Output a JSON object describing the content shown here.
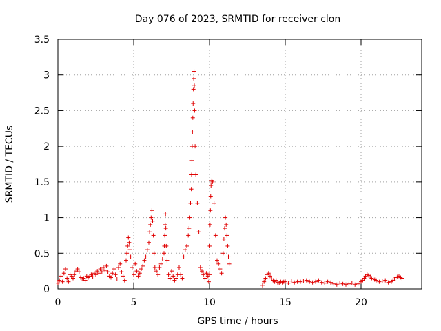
{
  "chart_data": {
    "type": "scatter",
    "title": "Day 076 of 2023, SRMTID for receiver clon",
    "xlabel": "GPS time / hours",
    "ylabel": "SRMTID / TECUs",
    "xlim": [
      0,
      24
    ],
    "ylim": [
      0,
      3.5
    ],
    "x_ticks": [
      0,
      5,
      10,
      15,
      20
    ],
    "x_tick_labels": [
      "0",
      "5",
      "10",
      "15",
      "20"
    ],
    "y_ticks": [
      0,
      0.5,
      1,
      1.5,
      2,
      2.5,
      3,
      3.5
    ],
    "y_tick_labels": [
      "0",
      "0.5",
      "1",
      "1.5",
      "2",
      "2.5",
      "3",
      "3.5"
    ],
    "grid": true,
    "marker": "+",
    "color": "#e00000",
    "series": [
      {
        "name": "clon",
        "x": [
          0.0,
          0.1,
          0.2,
          0.3,
          0.4,
          0.5,
          0.6,
          0.7,
          0.8,
          0.9,
          1.0,
          1.1,
          1.2,
          1.3,
          1.4,
          1.5,
          1.6,
          1.7,
          1.8,
          1.9,
          2.0,
          2.1,
          2.2,
          2.3,
          2.4,
          2.5,
          2.6,
          2.7,
          2.8,
          2.9,
          3.0,
          3.1,
          3.2,
          3.3,
          3.4,
          3.5,
          3.6,
          3.7,
          3.8,
          3.9,
          4.0,
          4.1,
          4.2,
          4.3,
          4.4,
          4.5,
          4.55,
          4.6,
          4.65,
          4.7,
          4.75,
          4.8,
          4.9,
          5.0,
          5.1,
          5.2,
          5.3,
          5.4,
          5.5,
          5.6,
          5.7,
          5.8,
          5.9,
          6.0,
          6.05,
          6.1,
          6.15,
          6.2,
          6.25,
          6.3,
          6.35,
          6.4,
          6.5,
          6.6,
          6.7,
          6.8,
          6.9,
          7.0,
          7.02,
          7.05,
          7.08,
          7.1,
          7.12,
          7.15,
          7.2,
          7.3,
          7.4,
          7.5,
          7.6,
          7.7,
          7.8,
          7.9,
          8.0,
          8.1,
          8.2,
          8.3,
          8.4,
          8.5,
          8.6,
          8.65,
          8.7,
          8.75,
          8.8,
          8.82,
          8.84,
          8.86,
          8.88,
          8.9,
          8.92,
          8.94,
          8.96,
          8.98,
          9.0,
          9.02,
          9.05,
          9.1,
          9.2,
          9.3,
          9.4,
          9.5,
          9.6,
          9.7,
          9.8,
          9.9,
          9.95,
          10.0,
          10.02,
          10.04,
          10.06,
          10.08,
          10.1,
          10.15,
          10.2,
          10.3,
          10.4,
          10.5,
          10.6,
          10.7,
          10.8,
          10.9,
          10.95,
          11.0,
          11.05,
          11.1,
          11.15,
          11.2,
          11.25,
          11.3,
          13.5,
          13.6,
          13.7,
          13.8,
          13.9,
          14.0,
          14.1,
          14.2,
          14.3,
          14.4,
          14.5,
          14.6,
          14.7,
          14.8,
          14.9,
          15.0,
          15.2,
          15.4,
          15.6,
          15.8,
          16.0,
          16.2,
          16.4,
          16.6,
          16.8,
          17.0,
          17.2,
          17.4,
          17.6,
          17.8,
          18.0,
          18.2,
          18.4,
          18.6,
          18.8,
          19.0,
          19.2,
          19.4,
          19.6,
          19.8,
          20.0,
          20.1,
          20.2,
          20.3,
          20.4,
          20.5,
          20.6,
          20.7,
          20.8,
          20.9,
          21.0,
          21.2,
          21.4,
          21.6,
          21.8,
          22.0,
          22.1,
          22.2,
          22.3,
          22.4,
          22.5,
          22.6,
          22.7
        ],
        "y": [
          0.08,
          0.12,
          0.18,
          0.1,
          0.22,
          0.28,
          0.15,
          0.1,
          0.2,
          0.18,
          0.15,
          0.2,
          0.25,
          0.28,
          0.24,
          0.16,
          0.14,
          0.15,
          0.12,
          0.18,
          0.16,
          0.18,
          0.2,
          0.17,
          0.22,
          0.2,
          0.25,
          0.22,
          0.28,
          0.24,
          0.3,
          0.26,
          0.32,
          0.24,
          0.18,
          0.16,
          0.22,
          0.28,
          0.2,
          0.14,
          0.3,
          0.35,
          0.24,
          0.18,
          0.12,
          0.4,
          0.5,
          0.6,
          0.72,
          0.65,
          0.55,
          0.45,
          0.3,
          0.2,
          0.35,
          0.25,
          0.18,
          0.22,
          0.28,
          0.32,
          0.4,
          0.45,
          0.55,
          0.65,
          0.8,
          0.9,
          1.0,
          1.1,
          0.95,
          0.75,
          0.5,
          0.3,
          0.25,
          0.2,
          0.3,
          0.35,
          0.42,
          0.5,
          0.6,
          0.75,
          0.9,
          1.05,
          0.85,
          0.6,
          0.4,
          0.2,
          0.15,
          0.25,
          0.18,
          0.12,
          0.15,
          0.2,
          0.3,
          0.2,
          0.15,
          0.45,
          0.55,
          0.6,
          0.75,
          0.85,
          1.0,
          1.2,
          1.4,
          1.6,
          1.8,
          2.0,
          2.2,
          2.4,
          2.6,
          2.8,
          2.95,
          3.05,
          2.85,
          2.5,
          2.0,
          1.6,
          1.2,
          0.8,
          0.3,
          0.25,
          0.2,
          0.15,
          0.22,
          0.18,
          0.1,
          0.2,
          0.6,
          0.9,
          1.1,
          1.3,
          1.45,
          1.52,
          1.5,
          1.2,
          0.75,
          0.4,
          0.35,
          0.28,
          0.22,
          0.5,
          0.7,
          0.85,
          1.0,
          0.9,
          0.75,
          0.6,
          0.45,
          0.35,
          0.05,
          0.1,
          0.15,
          0.2,
          0.22,
          0.18,
          0.14,
          0.12,
          0.1,
          0.12,
          0.09,
          0.08,
          0.1,
          0.09,
          0.1,
          0.1,
          0.08,
          0.11,
          0.09,
          0.1,
          0.1,
          0.11,
          0.12,
          0.1,
          0.09,
          0.1,
          0.12,
          0.09,
          0.08,
          0.1,
          0.09,
          0.07,
          0.06,
          0.08,
          0.07,
          0.06,
          0.07,
          0.08,
          0.06,
          0.07,
          0.1,
          0.12,
          0.15,
          0.18,
          0.2,
          0.19,
          0.17,
          0.15,
          0.14,
          0.13,
          0.12,
          0.1,
          0.11,
          0.12,
          0.09,
          0.1,
          0.12,
          0.14,
          0.16,
          0.17,
          0.18,
          0.16,
          0.15
        ]
      }
    ]
  }
}
